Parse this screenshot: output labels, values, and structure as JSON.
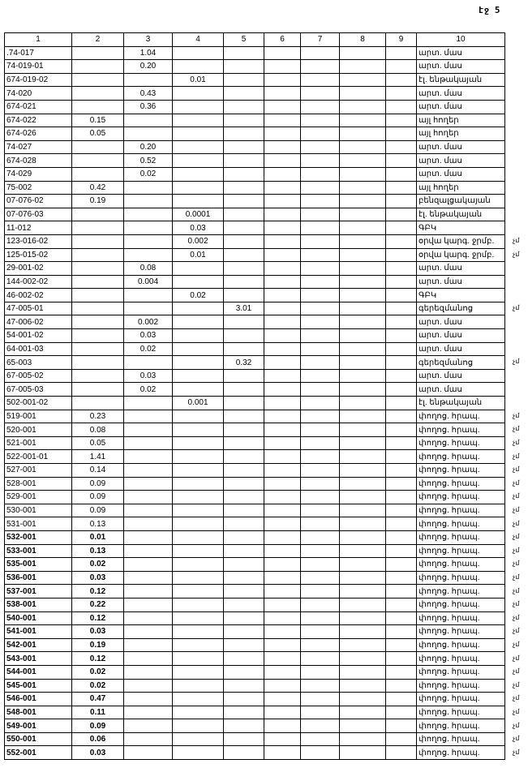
{
  "page_label": "էջ 5",
  "headers": [
    "1",
    "2",
    "3",
    "4",
    "5",
    "6",
    "7",
    "8",
    "9",
    "10"
  ],
  "rows": [
    {
      "c1": ".74-017",
      "col": 3,
      "val": "1.04",
      "c10": "արտ. մաս",
      "note": ""
    },
    {
      "c1": "74-019-01",
      "col": 3,
      "val": "0.20",
      "c10": "արտ. մաս",
      "note": ""
    },
    {
      "c1": "674-019-02",
      "col": 4,
      "val": "0.01",
      "c10": "էլ. ենթակայան",
      "note": ""
    },
    {
      "c1": "74-020",
      "col": 3,
      "val": "0.43",
      "c10": "արտ. մաս",
      "note": ""
    },
    {
      "c1": "674-021",
      "col": 3,
      "val": "0.36",
      "c10": "արտ. մաս",
      "note": ""
    },
    {
      "c1": "674-022",
      "col": 2,
      "val": "0.15",
      "c10": "այլ հողեր",
      "note": ""
    },
    {
      "c1": "674-026",
      "col": 2,
      "val": "0.05",
      "c10": "այլ հողեր",
      "note": ""
    },
    {
      "c1": "74-027",
      "col": 3,
      "val": "0.20",
      "c10": "արտ. մաս",
      "note": ""
    },
    {
      "c1": "674-028",
      "col": 3,
      "val": "0.52",
      "c10": "արտ. մաս",
      "note": ""
    },
    {
      "c1": "74-029",
      "col": 3,
      "val": "0.02",
      "c10": "արտ. մաս",
      "note": ""
    },
    {
      "c1": "75-002",
      "col": 2,
      "val": "0.42",
      "c10": "այլ հողեր",
      "note": ""
    },
    {
      "c1": "07-076-02",
      "col": 2,
      "val": "0.19",
      "c10": "բենզալցակայան",
      "note": ""
    },
    {
      "c1": "07-076-03",
      "col": 4,
      "val": "0.0001",
      "c10": "էլ. ենթակայան",
      "note": ""
    },
    {
      "c1": "11-012",
      "col": 4,
      "val": "0.03",
      "c10": "ԳԲԿ",
      "note": ""
    },
    {
      "c1": "123-016-02",
      "col": 4,
      "val": "0.002",
      "c10": "օրվա կարգ. ջրմբ.",
      "note": "չմ"
    },
    {
      "c1": "125-015-02",
      "col": 4,
      "val": "0.01",
      "c10": "օրվա կարգ. ջրմբ.",
      "note": "չմ"
    },
    {
      "c1": "29-001-02",
      "col": 3,
      "val": "0.08",
      "c10": "արտ. մաս",
      "note": ""
    },
    {
      "c1": "144-002-02",
      "col": 3,
      "val": "0.004",
      "c10": "արտ. մաս",
      "note": ""
    },
    {
      "c1": "46-002-02",
      "col": 4,
      "val": "0.02",
      "c10": "ԳԲԿ",
      "note": ""
    },
    {
      "c1": "47-005-01",
      "col": 5,
      "val": "3.01",
      "c10": "գերեզմանոց",
      "note": "չմ"
    },
    {
      "c1": "47-006-02",
      "col": 3,
      "val": "0.002",
      "c10": "արտ. մաս",
      "note": ""
    },
    {
      "c1": "54-001-02",
      "col": 3,
      "val": "0.03",
      "c10": "արտ. մաս",
      "note": ""
    },
    {
      "c1": "64-001-03",
      "col": 3,
      "val": "0.02",
      "c10": "արտ. մաս",
      "note": ""
    },
    {
      "c1": "65-003",
      "col": 5,
      "val": "0.32",
      "c10": "գերեզմանոց",
      "note": "չմ"
    },
    {
      "c1": "67-005-02",
      "col": 3,
      "val": "0.03",
      "c10": "արտ. մաս",
      "note": ""
    },
    {
      "c1": "67-005-03",
      "col": 3,
      "val": "0.02",
      "c10": "արտ. մաս",
      "note": ""
    },
    {
      "c1": "502-001-02",
      "col": 4,
      "val": "0.001",
      "c10": "էլ. ենթակայան",
      "note": ""
    },
    {
      "c1": "519-001",
      "col": 2,
      "val": "0.23",
      "c10": "փողոց. հրապ.",
      "note": "չմ"
    },
    {
      "c1": "520-001",
      "col": 2,
      "val": "0.08",
      "c10": "փողոց. հրապ.",
      "note": "չմ"
    },
    {
      "c1": "521-001",
      "col": 2,
      "val": "0.05",
      "c10": "փողոց. հրապ.",
      "note": "չմ"
    },
    {
      "c1": "522-001-01",
      "col": 2,
      "val": "1.41",
      "c10": "փողոց. հրապ.",
      "note": "չմ"
    },
    {
      "c1": "527-001",
      "col": 2,
      "val": "0.14",
      "c10": "փողոց. հրապ.",
      "note": "չմ"
    },
    {
      "c1": "528-001",
      "col": 2,
      "val": "0.09",
      "c10": "փողոց. հրապ.",
      "note": "չմ"
    },
    {
      "c1": "529-001",
      "col": 2,
      "val": "0.09",
      "c10": "փողոց. հրապ.",
      "note": "չմ"
    },
    {
      "c1": "530-001",
      "col": 2,
      "val": "0.09",
      "c10": "փողոց. հրապ.",
      "note": "չմ"
    },
    {
      "c1": "531-001",
      "col": 2,
      "val": "0.13",
      "c10": "փողոց. հրապ.",
      "note": "չմ"
    },
    {
      "c1": "532-001",
      "col": 2,
      "val": "0.01",
      "c10": "փողոց. հրապ.",
      "note": "չմ"
    },
    {
      "c1": "533-001",
      "col": 2,
      "val": "0.13",
      "c10": "փողոց. հրապ.",
      "note": "չմ"
    },
    {
      "c1": "535-001",
      "col": 2,
      "val": "0.02",
      "c10": "փողոց. հրապ.",
      "note": "չմ"
    },
    {
      "c1": "536-001",
      "col": 2,
      "val": "0.03",
      "c10": "փողոց. հրապ.",
      "note": "չմ"
    },
    {
      "c1": "537-001",
      "col": 2,
      "val": "0.12",
      "c10": "փողոց. հրապ.",
      "note": "չմ"
    },
    {
      "c1": "538-001",
      "col": 2,
      "val": "0.22",
      "c10": "փողոց. հրապ.",
      "note": "չմ"
    },
    {
      "c1": "540-001",
      "col": 2,
      "val": "0.12",
      "c10": "փողոց. հրապ.",
      "note": "չմ"
    },
    {
      "c1": "541-001",
      "col": 2,
      "val": "0.03",
      "c10": "փողոց. հրապ.",
      "note": "չմ"
    },
    {
      "c1": "542-001",
      "col": 2,
      "val": "0.19",
      "c10": "փողոց. հրապ.",
      "note": "չմ"
    },
    {
      "c1": "543-001",
      "col": 2,
      "val": "0.12",
      "c10": "փողոց. հրապ.",
      "note": "չմ"
    },
    {
      "c1": "544-001",
      "col": 2,
      "val": "0.02",
      "c10": "փողոց. հրապ.",
      "note": "չմ"
    },
    {
      "c1": "545-001",
      "col": 2,
      "val": "0.02",
      "c10": "փողոց. հրապ.",
      "note": "չմ"
    },
    {
      "c1": "546-001",
      "col": 2,
      "val": "0.47",
      "c10": "փողոց. հրապ.",
      "note": "չմ"
    },
    {
      "c1": "548-001",
      "col": 2,
      "val": "0.11",
      "c10": "փողոց. հրապ.",
      "note": "չմ"
    },
    {
      "c1": "549-001",
      "col": 2,
      "val": "0.09",
      "c10": "փողոց. հրապ.",
      "note": "չմ"
    },
    {
      "c1": "550-001",
      "col": 2,
      "val": "0.06",
      "c10": "փողոց. հրապ.",
      "note": "չմ"
    },
    {
      "c1": "552-001",
      "col": 2,
      "val": "0.03",
      "c10": "փողոց. հրապ.",
      "note": "չմ"
    }
  ]
}
